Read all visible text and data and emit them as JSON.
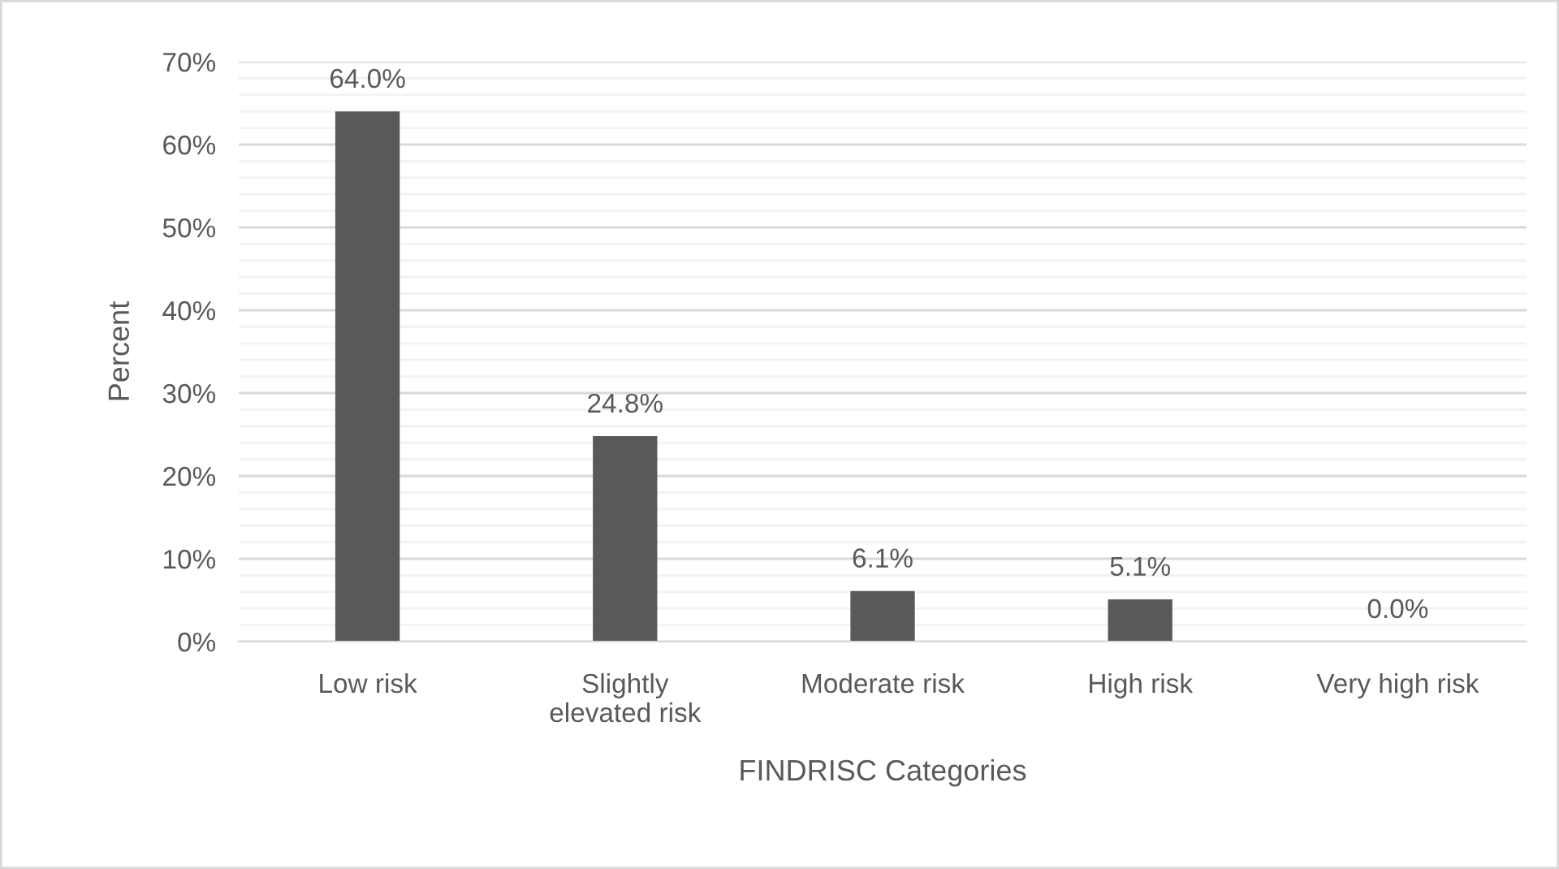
{
  "chart_data": {
    "type": "bar",
    "categories": [
      "Low risk",
      "Slightly elevated risk",
      "Moderate risk",
      "High risk",
      "Very high risk"
    ],
    "values": [
      64.0,
      24.8,
      6.1,
      5.1,
      0.0
    ],
    "value_labels": [
      "64.0%",
      "24.8%",
      "6.1%",
      "5.1%",
      "0.0%"
    ],
    "color": "#595959",
    "xlabel": "FINDRISC Categories",
    "ylabel": "Percent",
    "ylim": [
      0,
      70
    ],
    "yticks": [
      {
        "value": 0,
        "label": "0%"
      },
      {
        "value": 2,
        "label": null
      },
      {
        "value": 4,
        "label": null
      },
      {
        "value": 6,
        "label": null
      },
      {
        "value": 8,
        "label": null
      },
      {
        "value": 10,
        "label": "10%"
      },
      {
        "value": 12,
        "label": null
      },
      {
        "value": 14,
        "label": null
      },
      {
        "value": 16,
        "label": null
      },
      {
        "value": 18,
        "label": null
      },
      {
        "value": 20,
        "label": "20%"
      },
      {
        "value": 22,
        "label": null
      },
      {
        "value": 24,
        "label": null
      },
      {
        "value": 26,
        "label": null
      },
      {
        "value": 28,
        "label": null
      },
      {
        "value": 30,
        "label": "30%"
      },
      {
        "value": 32,
        "label": null
      },
      {
        "value": 34,
        "label": null
      },
      {
        "value": 36,
        "label": null
      },
      {
        "value": 38,
        "label": null
      },
      {
        "value": 40,
        "label": "40%"
      },
      {
        "value": 42,
        "label": null
      },
      {
        "value": 44,
        "label": null
      },
      {
        "value": 46,
        "label": null
      },
      {
        "value": 48,
        "label": null
      },
      {
        "value": 50,
        "label": "50%"
      },
      {
        "value": 52,
        "label": null
      },
      {
        "value": 54,
        "label": null
      },
      {
        "value": 56,
        "label": null
      },
      {
        "value": 58,
        "label": null
      },
      {
        "value": 60,
        "label": "60%"
      },
      {
        "value": 62,
        "label": null
      },
      {
        "value": 64,
        "label": null
      },
      {
        "value": 66,
        "label": null
      },
      {
        "value": 68,
        "label": null
      },
      {
        "value": 70,
        "label": "70%"
      }
    ],
    "grid": "y"
  }
}
